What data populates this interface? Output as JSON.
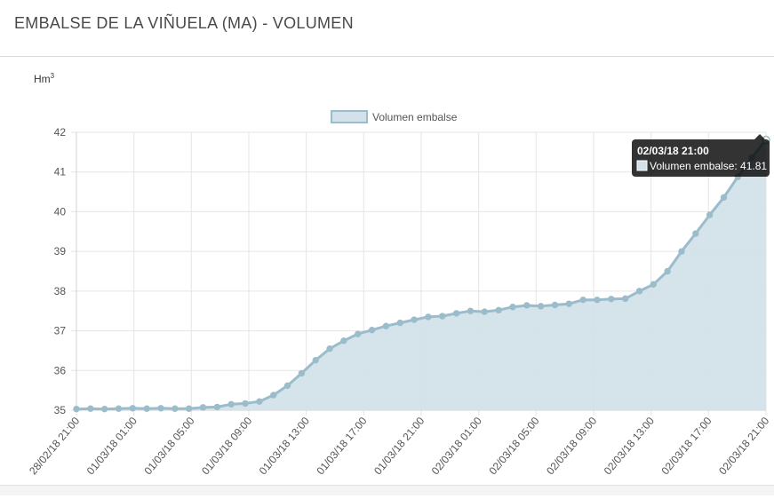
{
  "header": {
    "title": "EMBALSE DE LA VIÑUELA (MA) - VOLUMEN"
  },
  "chart_data": {
    "type": "area",
    "unit_label": "Hm",
    "unit_sup": "3",
    "legend": {
      "label": "Volumen embalse",
      "position": "top"
    },
    "grid": true,
    "ylim": [
      35,
      42
    ],
    "yticks": [
      35,
      36,
      37,
      38,
      39,
      40,
      41,
      42
    ],
    "xtick_labels": [
      "28/02/18 21:00",
      "01/03/18 01:00",
      "01/03/18 05:00",
      "01/03/18 09:00",
      "01/03/18 13:00",
      "01/03/18 17:00",
      "01/03/18 21:00",
      "02/03/18 01:00",
      "02/03/18 05:00",
      "02/03/18 09:00",
      "02/03/18 13:00",
      "02/03/18 17:00",
      "02/03/18 21:00"
    ],
    "series": [
      {
        "name": "Volumen embalse",
        "color": "#9bbccb",
        "fill": "#d3e2ea",
        "values": [
          35.03,
          35.04,
          35.03,
          35.04,
          35.05,
          35.04,
          35.05,
          35.04,
          35.04,
          35.07,
          35.08,
          35.15,
          35.17,
          35.22,
          35.38,
          35.62,
          35.93,
          36.26,
          36.55,
          36.75,
          36.92,
          37.02,
          37.12,
          37.2,
          37.28,
          37.35,
          37.37,
          37.44,
          37.5,
          37.48,
          37.52,
          37.6,
          37.64,
          37.62,
          37.65,
          37.68,
          37.78,
          37.78,
          37.8,
          37.81,
          38.0,
          38.17,
          38.5,
          39.0,
          39.45,
          39.92,
          40.36,
          40.88,
          41.36,
          41.81
        ]
      }
    ],
    "tooltip": {
      "title": "02/03/18 21:00",
      "label": "Volumen embalse: 41.81"
    }
  }
}
